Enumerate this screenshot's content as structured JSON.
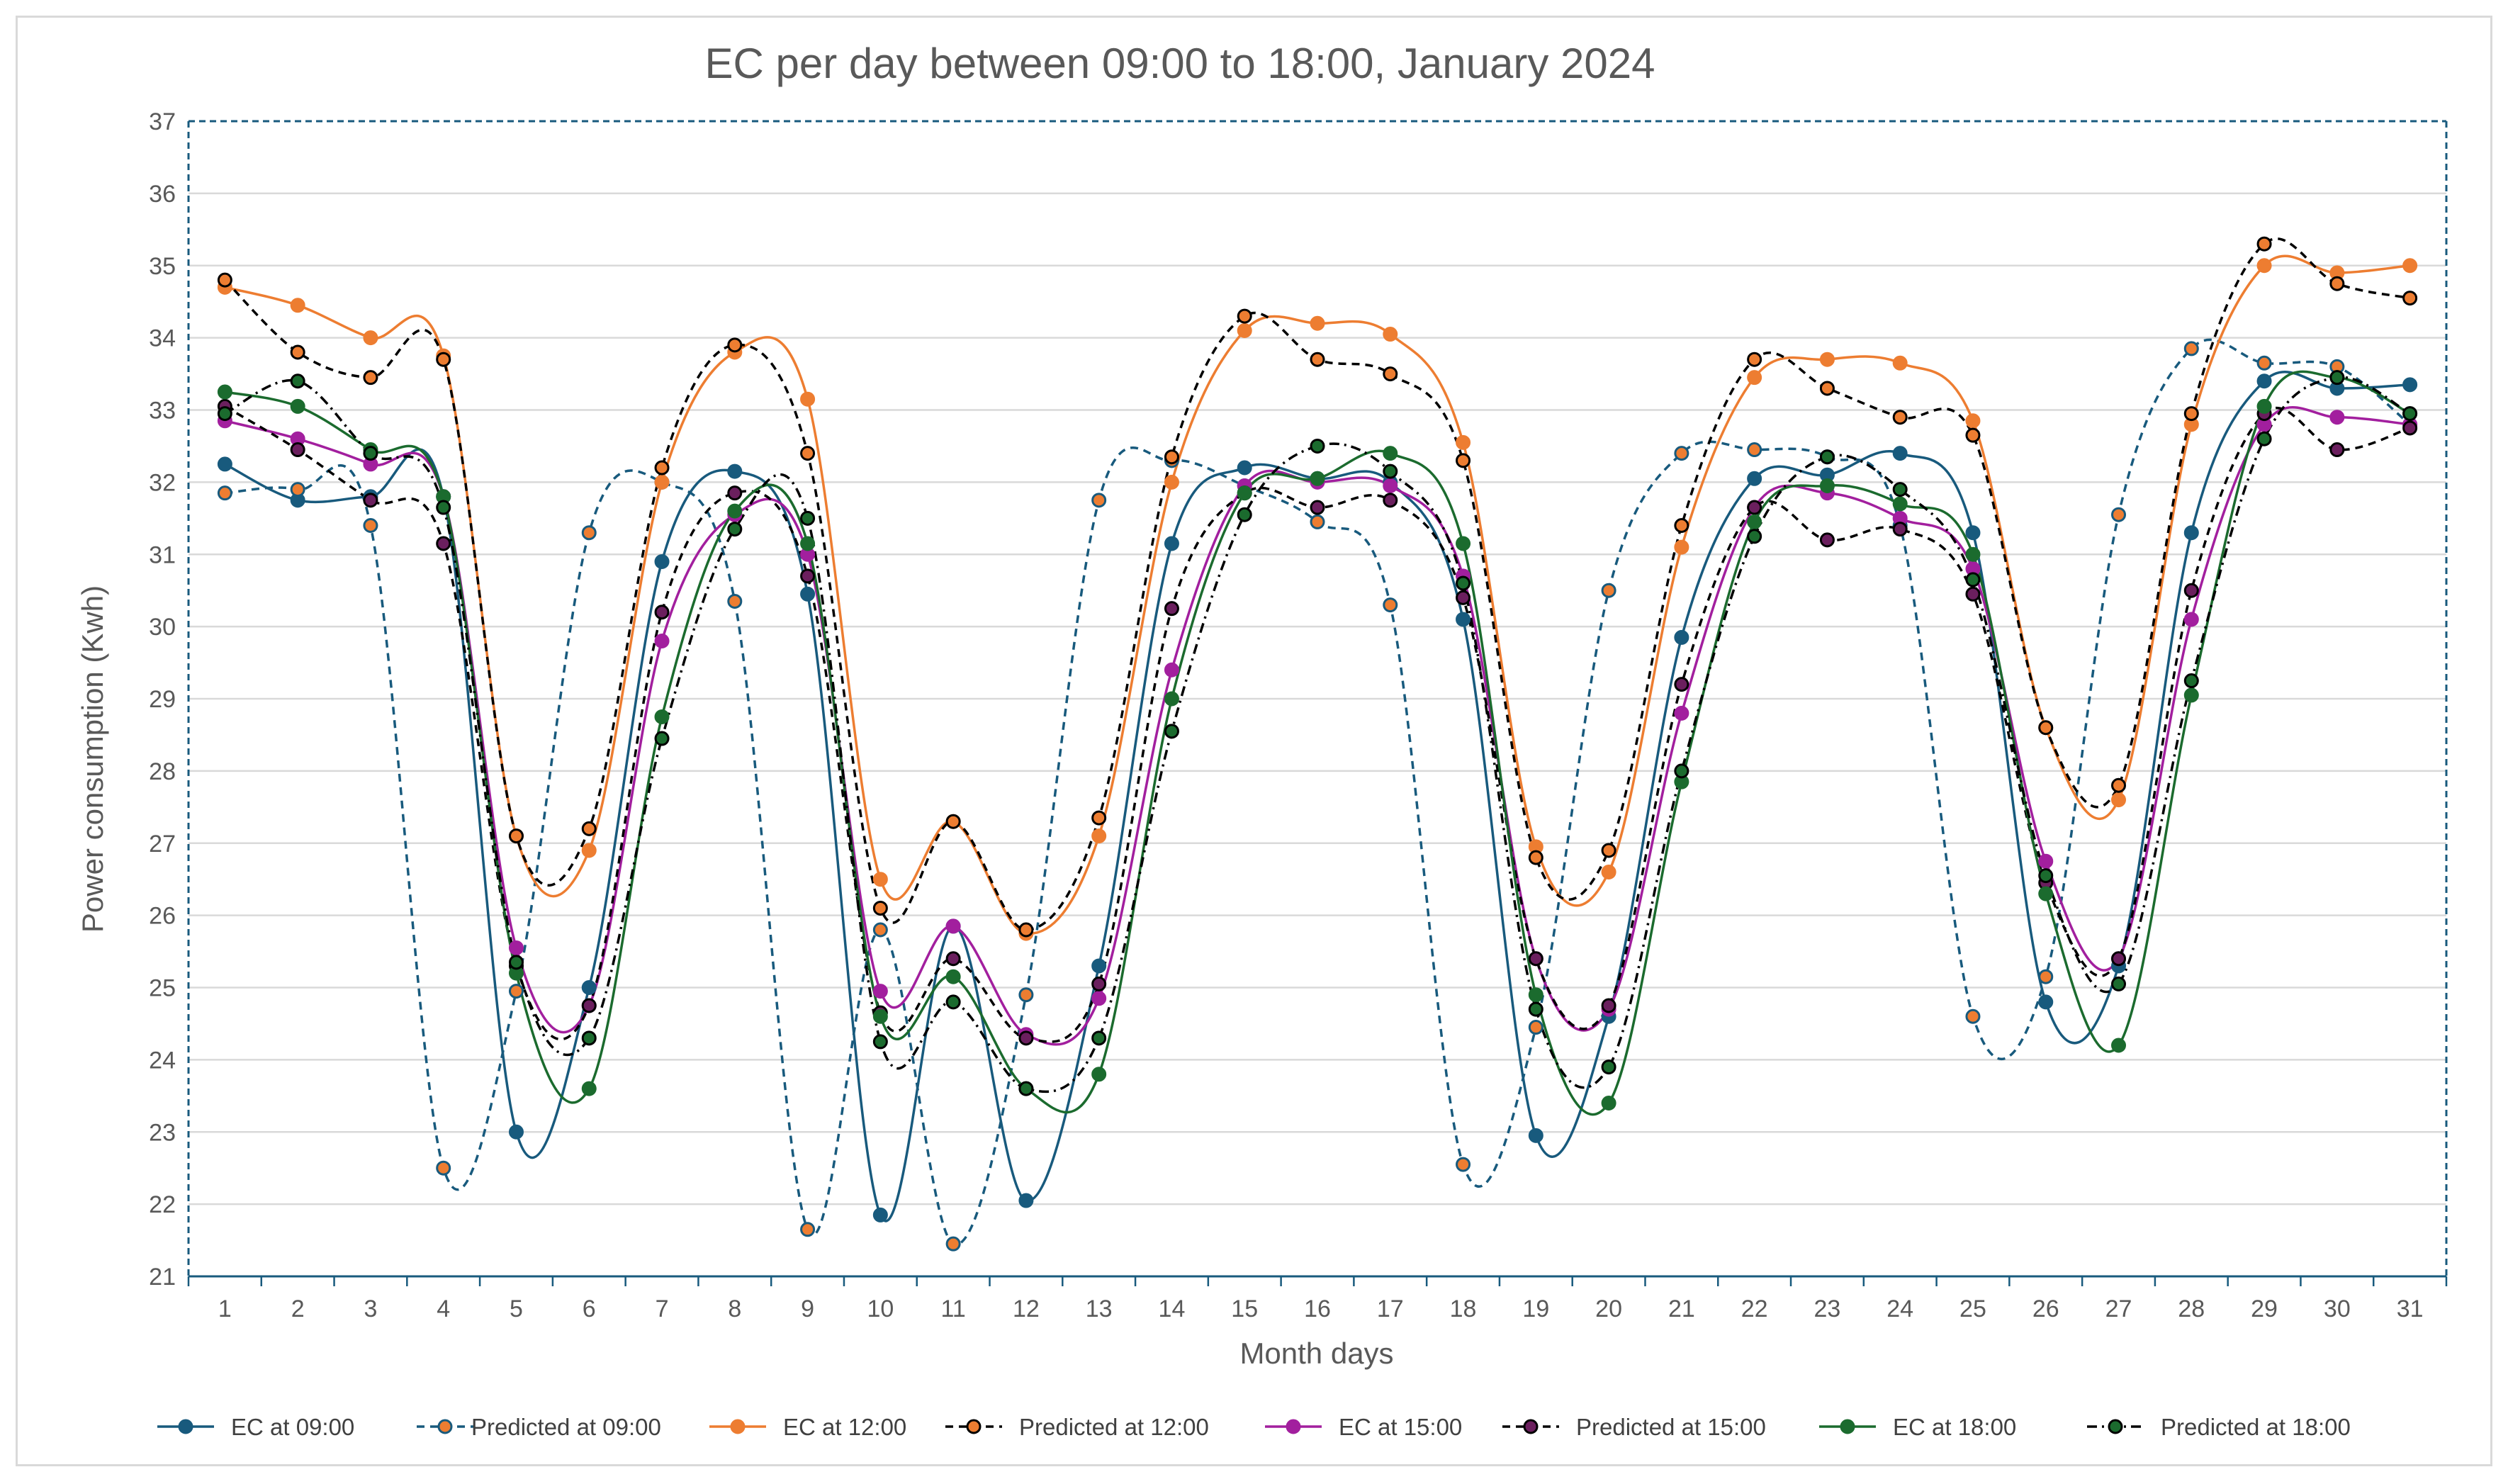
{
  "chart_data": {
    "type": "line",
    "title": "EC per day between 09:00 to 18:00, January 2024",
    "xlabel": "Month days",
    "ylabel": "Power consumption (Kwh)",
    "ylim": [
      21,
      37
    ],
    "yticks": [
      21,
      22,
      23,
      24,
      25,
      26,
      27,
      28,
      29,
      30,
      31,
      32,
      33,
      34,
      35,
      36,
      37
    ],
    "grid": true,
    "legend_position": "bottom",
    "categories": [
      "1",
      "2",
      "3",
      "4",
      "5",
      "6",
      "7",
      "8",
      "9",
      "10",
      "11",
      "12",
      "13",
      "14",
      "15",
      "16",
      "17",
      "18",
      "19",
      "20",
      "21",
      "22",
      "23",
      "24",
      "25",
      "26",
      "27",
      "28",
      "29",
      "30",
      "31"
    ],
    "series": [
      {
        "name": "EC at 09:00",
        "line_color": "#185a7d",
        "marker_fill": "#185a7d",
        "marker_edge": "#185a7d",
        "dash": "solid",
        "values": [
          32.25,
          31.75,
          31.8,
          31.8,
          23.0,
          25.0,
          30.9,
          32.15,
          30.45,
          21.85,
          25.85,
          22.05,
          25.3,
          31.15,
          32.2,
          32.05,
          32.0,
          30.1,
          22.95,
          24.6,
          29.85,
          32.05,
          32.1,
          32.4,
          31.3,
          24.8,
          25.3,
          31.3,
          33.4,
          33.3,
          33.35
        ]
      },
      {
        "name": "Predicted at 09:00",
        "line_color": "#185a7d",
        "marker_fill": "#ed7d31",
        "marker_edge": "#185a7d",
        "dash": "dash",
        "values": [
          31.85,
          31.9,
          31.4,
          22.5,
          24.95,
          31.3,
          32.0,
          30.35,
          21.65,
          25.8,
          21.45,
          24.9,
          31.75,
          32.3,
          31.95,
          31.45,
          30.3,
          22.55,
          24.45,
          30.5,
          32.4,
          32.45,
          32.35,
          31.4,
          24.6,
          25.15,
          31.55,
          33.85,
          33.65,
          33.6,
          32.8
        ]
      },
      {
        "name": "EC at 12:00",
        "line_color": "#ed7d31",
        "marker_fill": "#ed7d31",
        "marker_edge": "#ed7d31",
        "dash": "solid",
        "values": [
          34.7,
          34.45,
          34.0,
          33.75,
          27.1,
          26.9,
          32.0,
          33.8,
          33.15,
          26.5,
          27.3,
          25.75,
          27.1,
          32.0,
          34.1,
          34.2,
          34.05,
          32.55,
          26.95,
          26.6,
          31.1,
          33.45,
          33.7,
          33.65,
          32.85,
          28.6,
          27.6,
          32.8,
          35.0,
          34.9,
          35.0
        ]
      },
      {
        "name": "Predicted at 12:00",
        "line_color": "#000000",
        "marker_fill": "#ed7d31",
        "marker_edge": "#000000",
        "dash": "dash",
        "values": [
          34.8,
          33.8,
          33.45,
          33.7,
          27.1,
          27.2,
          32.2,
          33.9,
          32.4,
          26.1,
          27.3,
          25.8,
          27.35,
          32.35,
          34.3,
          33.7,
          33.5,
          32.3,
          26.8,
          26.9,
          31.4,
          33.7,
          33.3,
          32.9,
          32.65,
          28.6,
          27.8,
          32.95,
          35.3,
          34.75,
          34.55
        ]
      },
      {
        "name": "EC at 15:00",
        "line_color": "#a21f9e",
        "marker_fill": "#a21f9e",
        "marker_edge": "#a21f9e",
        "dash": "solid",
        "values": [
          32.85,
          32.6,
          32.25,
          31.8,
          25.55,
          24.75,
          29.8,
          31.55,
          31.0,
          24.95,
          25.85,
          24.35,
          24.85,
          29.4,
          31.95,
          32.0,
          31.95,
          30.7,
          25.4,
          24.7,
          28.8,
          31.65,
          31.85,
          31.5,
          30.8,
          26.75,
          25.4,
          30.1,
          32.8,
          32.9,
          32.8
        ]
      },
      {
        "name": "Predicted at 15:00",
        "line_color": "#000000",
        "marker_fill": "#6b1f5e",
        "marker_edge": "#000000",
        "dash": "dash",
        "values": [
          33.05,
          32.45,
          31.75,
          31.15,
          25.3,
          24.75,
          30.2,
          31.85,
          30.7,
          24.65,
          25.4,
          24.3,
          25.05,
          30.25,
          31.85,
          31.65,
          31.75,
          30.4,
          25.4,
          24.75,
          29.2,
          31.65,
          31.2,
          31.35,
          30.45,
          26.45,
          25.4,
          30.5,
          32.95,
          32.45,
          32.75
        ]
      },
      {
        "name": "EC at 18:00",
        "line_color": "#1b6b2e",
        "marker_fill": "#1b6b2e",
        "marker_edge": "#1b6b2e",
        "dash": "solid",
        "values": [
          33.25,
          33.05,
          32.45,
          31.8,
          25.2,
          23.6,
          28.75,
          31.6,
          31.15,
          24.6,
          25.15,
          23.6,
          23.8,
          29.0,
          31.85,
          32.05,
          32.4,
          31.15,
          24.9,
          23.4,
          27.85,
          31.45,
          31.95,
          31.7,
          31.0,
          26.3,
          24.2,
          29.05,
          33.05,
          33.45,
          32.95
        ]
      },
      {
        "name": "Predicted at 18:00",
        "line_color": "#000000",
        "marker_fill": "#1b6b2e",
        "marker_edge": "#000000",
        "dash": "dashdot",
        "values": [
          32.95,
          33.4,
          32.4,
          31.65,
          25.35,
          24.3,
          28.45,
          31.35,
          31.5,
          24.25,
          24.8,
          23.6,
          24.3,
          28.55,
          31.55,
          32.5,
          32.15,
          30.6,
          24.7,
          23.9,
          28.0,
          31.25,
          32.35,
          31.9,
          30.65,
          26.55,
          25.05,
          29.25,
          32.6,
          33.45,
          32.95
        ]
      }
    ]
  }
}
